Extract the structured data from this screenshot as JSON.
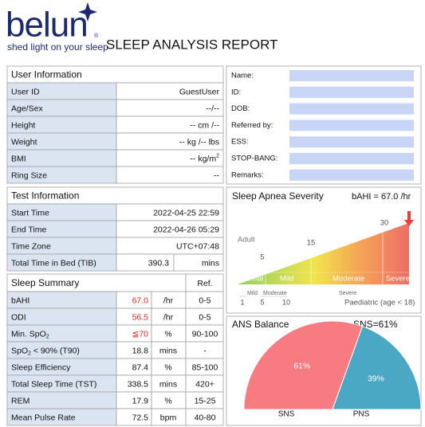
{
  "header": {
    "logo": "belun",
    "registered": "®",
    "tagline": "shed light on your sleep",
    "title": "SLEEP ANALYSIS REPORT"
  },
  "user_info": {
    "title": "User Information",
    "rows": [
      {
        "label": "User ID",
        "value": "GuestUser"
      },
      {
        "label": "Age/Sex",
        "value": "--/--"
      },
      {
        "label": "Height",
        "value": "-- cm /--"
      },
      {
        "label": "Weight",
        "value": "-- kg /-- lbs"
      },
      {
        "label": "BMI",
        "value": "-- kg/m",
        "sup": "2"
      },
      {
        "label": "Ring Size",
        "value": "--"
      }
    ]
  },
  "test_info": {
    "title": "Test Information",
    "rows": [
      {
        "label": "Start Time",
        "value": "2022-04-25 22:59"
      },
      {
        "label": "End Time",
        "value": "2022-04-26 05:29"
      },
      {
        "label": "Time Zone",
        "value": "UTC+07:48"
      },
      {
        "label": "Total Time in Bed (TIB)",
        "value": 390.3,
        "unit": "mins"
      }
    ]
  },
  "sleep_summary": {
    "title": "Sleep Summary",
    "ref_header": "Ref.",
    "rows": [
      {
        "label": "bAHI",
        "value": 67.0,
        "value_label": "67.0",
        "unit": "/hr",
        "ref": "0-5",
        "color": "#e0281e"
      },
      {
        "label": "ODI",
        "value": 56.5,
        "unit": "/hr",
        "ref": "0-5",
        "color": "#e0281e"
      },
      {
        "label": [
          "Min. SpO",
          "2"
        ],
        "value": "≦70",
        "unit": "%",
        "ref": "90-100",
        "color": "#e0281e"
      },
      {
        "label": [
          "SpO",
          "2",
          " < 90% (T90)"
        ],
        "value": 18.8,
        "unit": "mins",
        "ref": "-"
      },
      {
        "label": "Sleep Efficiency",
        "value": 87.4,
        "unit": "%",
        "ref": "85-100"
      },
      {
        "label": "Total Sleep Time (TST)",
        "value": 338.5,
        "unit": "mins",
        "ref": "420+"
      },
      {
        "label": "REM",
        "value": 17.9,
        "unit": "%",
        "ref": "15-25"
      },
      {
        "label": "Mean Pulse Rate",
        "value": 72.5,
        "unit": "bpm",
        "ref": "40-80"
      }
    ]
  },
  "patient_form": {
    "fields": [
      "Name:",
      "ID:",
      "DOB:",
      "Referred by:",
      "ESS:",
      "STOP-BANG:",
      "Remarks:"
    ]
  },
  "severity": {
    "title": "Sleep Apnea Severity",
    "bahi_text": "bAHI = 67.0 /hr",
    "adult_label": "Adult",
    "adult_ticks": [
      5,
      15,
      30
    ],
    "zones": [
      "Normal",
      "Mild",
      "Moderate",
      "Severe"
    ],
    "paediatric_ticks": [
      1,
      5,
      10
    ],
    "paediatric_zones": [
      "Mild",
      "Moderate",
      "Severe"
    ],
    "paediatric_label": "Paediatric (age < 18)"
  },
  "ans": {
    "title": "ANS Balance",
    "summary": "SNS=61%",
    "series": [
      {
        "name": "SNS",
        "value": 61,
        "label": "61%",
        "color": "#f77b80"
      },
      {
        "name": "PNS",
        "value": 39,
        "label": "39%",
        "color": "#4aa8c4"
      }
    ]
  }
}
